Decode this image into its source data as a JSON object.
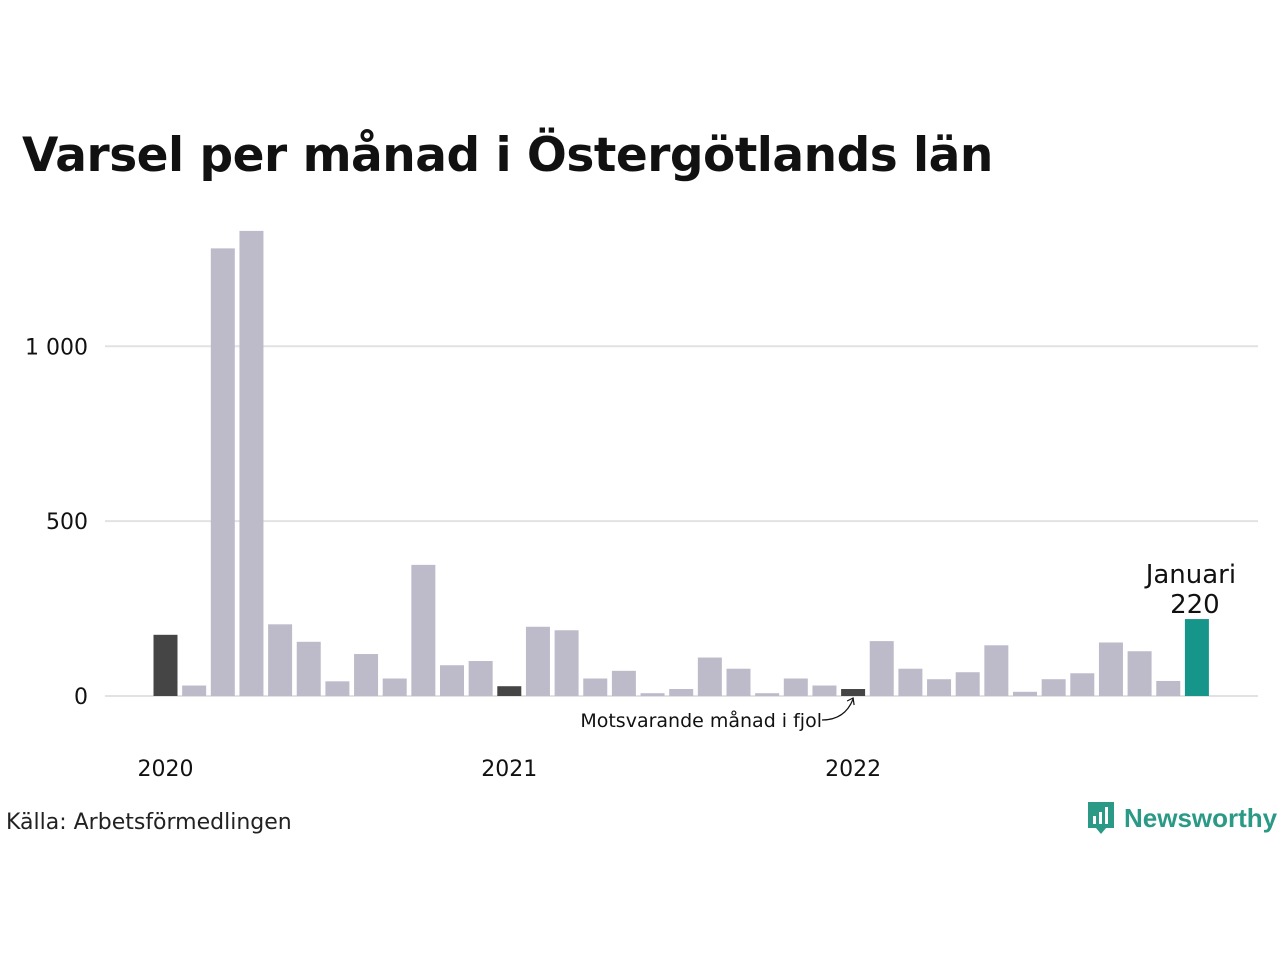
{
  "chart_data": {
    "type": "bar",
    "title": "Varsel per månad i Östergötlands län",
    "categories": [
      "2020-01",
      "2020-02",
      "2020-03",
      "2020-04",
      "2020-05",
      "2020-06",
      "2020-07",
      "2020-08",
      "2020-09",
      "2020-10",
      "2020-11",
      "2020-12",
      "2021-01",
      "2021-02",
      "2021-03",
      "2021-04",
      "2021-05",
      "2021-06",
      "2021-07",
      "2021-08",
      "2021-09",
      "2021-10",
      "2021-11",
      "2021-12",
      "2022-01",
      "2022-02",
      "2022-03",
      "2022-04",
      "2022-05",
      "2022-06",
      "2022-07",
      "2022-08",
      "2022-09",
      "2022-10",
      "2022-11",
      "2022-12",
      "2023-01"
    ],
    "values": [
      175,
      30,
      1280,
      1330,
      205,
      155,
      42,
      120,
      50,
      375,
      88,
      100,
      28,
      198,
      188,
      50,
      72,
      8,
      20,
      110,
      78,
      8,
      50,
      30,
      20,
      157,
      78,
      48,
      68,
      145,
      12,
      48,
      65,
      153,
      128,
      43,
      220
    ],
    "highlight": {
      "january_indices": [
        0,
        12,
        24
      ],
      "current_index": 36
    },
    "colors": {
      "bar": "#bdbbc9",
      "same_month": "#454545",
      "current": "#16958a",
      "grid": "#e2e2e2"
    },
    "xticks": [
      {
        "index": 0,
        "label": "2020"
      },
      {
        "index": 12,
        "label": "2021"
      },
      {
        "index": 24,
        "label": "2022"
      }
    ],
    "yticks": [
      {
        "value": 0,
        "label": "0"
      },
      {
        "value": 500,
        "label": "500"
      },
      {
        "value": 1000,
        "label": "1 000"
      }
    ],
    "ylim": [
      0,
      1330
    ],
    "grid": true,
    "annotations": {
      "current_month": "Januari",
      "current_value": "220",
      "previous_year": "Motsvarande månad i fjol"
    }
  },
  "source": "Källa: Arbetsförmedlingen",
  "brand": {
    "name": "Newsworthy",
    "icon": "bar-chart-speech-bubble-icon"
  }
}
